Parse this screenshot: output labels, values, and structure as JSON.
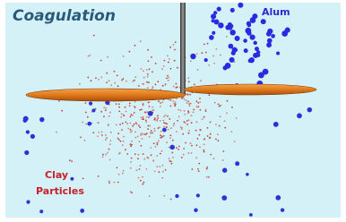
{
  "title": "Coagulation",
  "labels": {
    "alum": "Alum",
    "clay": [
      "Clay",
      "Particles"
    ]
  }
}
